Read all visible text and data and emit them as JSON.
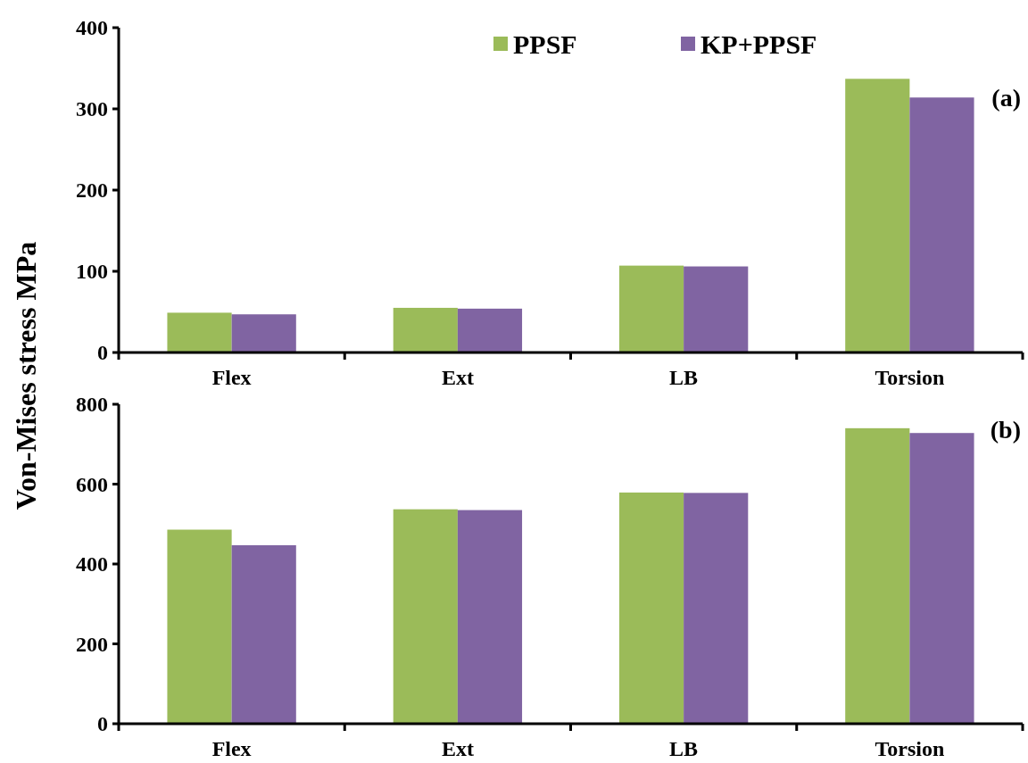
{
  "chart_data": [
    {
      "type": "bar",
      "ylabel": "Von-Mises stress MPa",
      "categories": [
        "Flex",
        "Ext",
        "LB",
        "Torsion"
      ],
      "series": [
        {
          "name": "PPSF",
          "color": "#9bbb59",
          "values": [
            49,
            55,
            107,
            337
          ]
        },
        {
          "name": "KP+PPSF",
          "color": "#8064a2",
          "values": [
            47,
            54,
            106,
            314
          ]
        }
      ],
      "ylim": [
        0,
        400
      ],
      "yticks": [
        0,
        100,
        200,
        300,
        400
      ],
      "legend": "top",
      "grid": false,
      "annotations": [
        "(a)"
      ]
    },
    {
      "type": "bar",
      "categories": [
        "Flex",
        "Ext",
        "LB",
        "Torsion"
      ],
      "series": [
        {
          "color": "#9bbb59",
          "values": [
            486,
            537,
            579,
            740
          ]
        },
        {
          "color": "#8064a2",
          "values": [
            447,
            535,
            578,
            728
          ]
        }
      ],
      "ylim": [
        0,
        800
      ],
      "yticks": [
        0,
        200,
        400,
        600,
        800
      ],
      "legend": false,
      "grid": false,
      "annotations": [
        "(b)"
      ]
    }
  ]
}
